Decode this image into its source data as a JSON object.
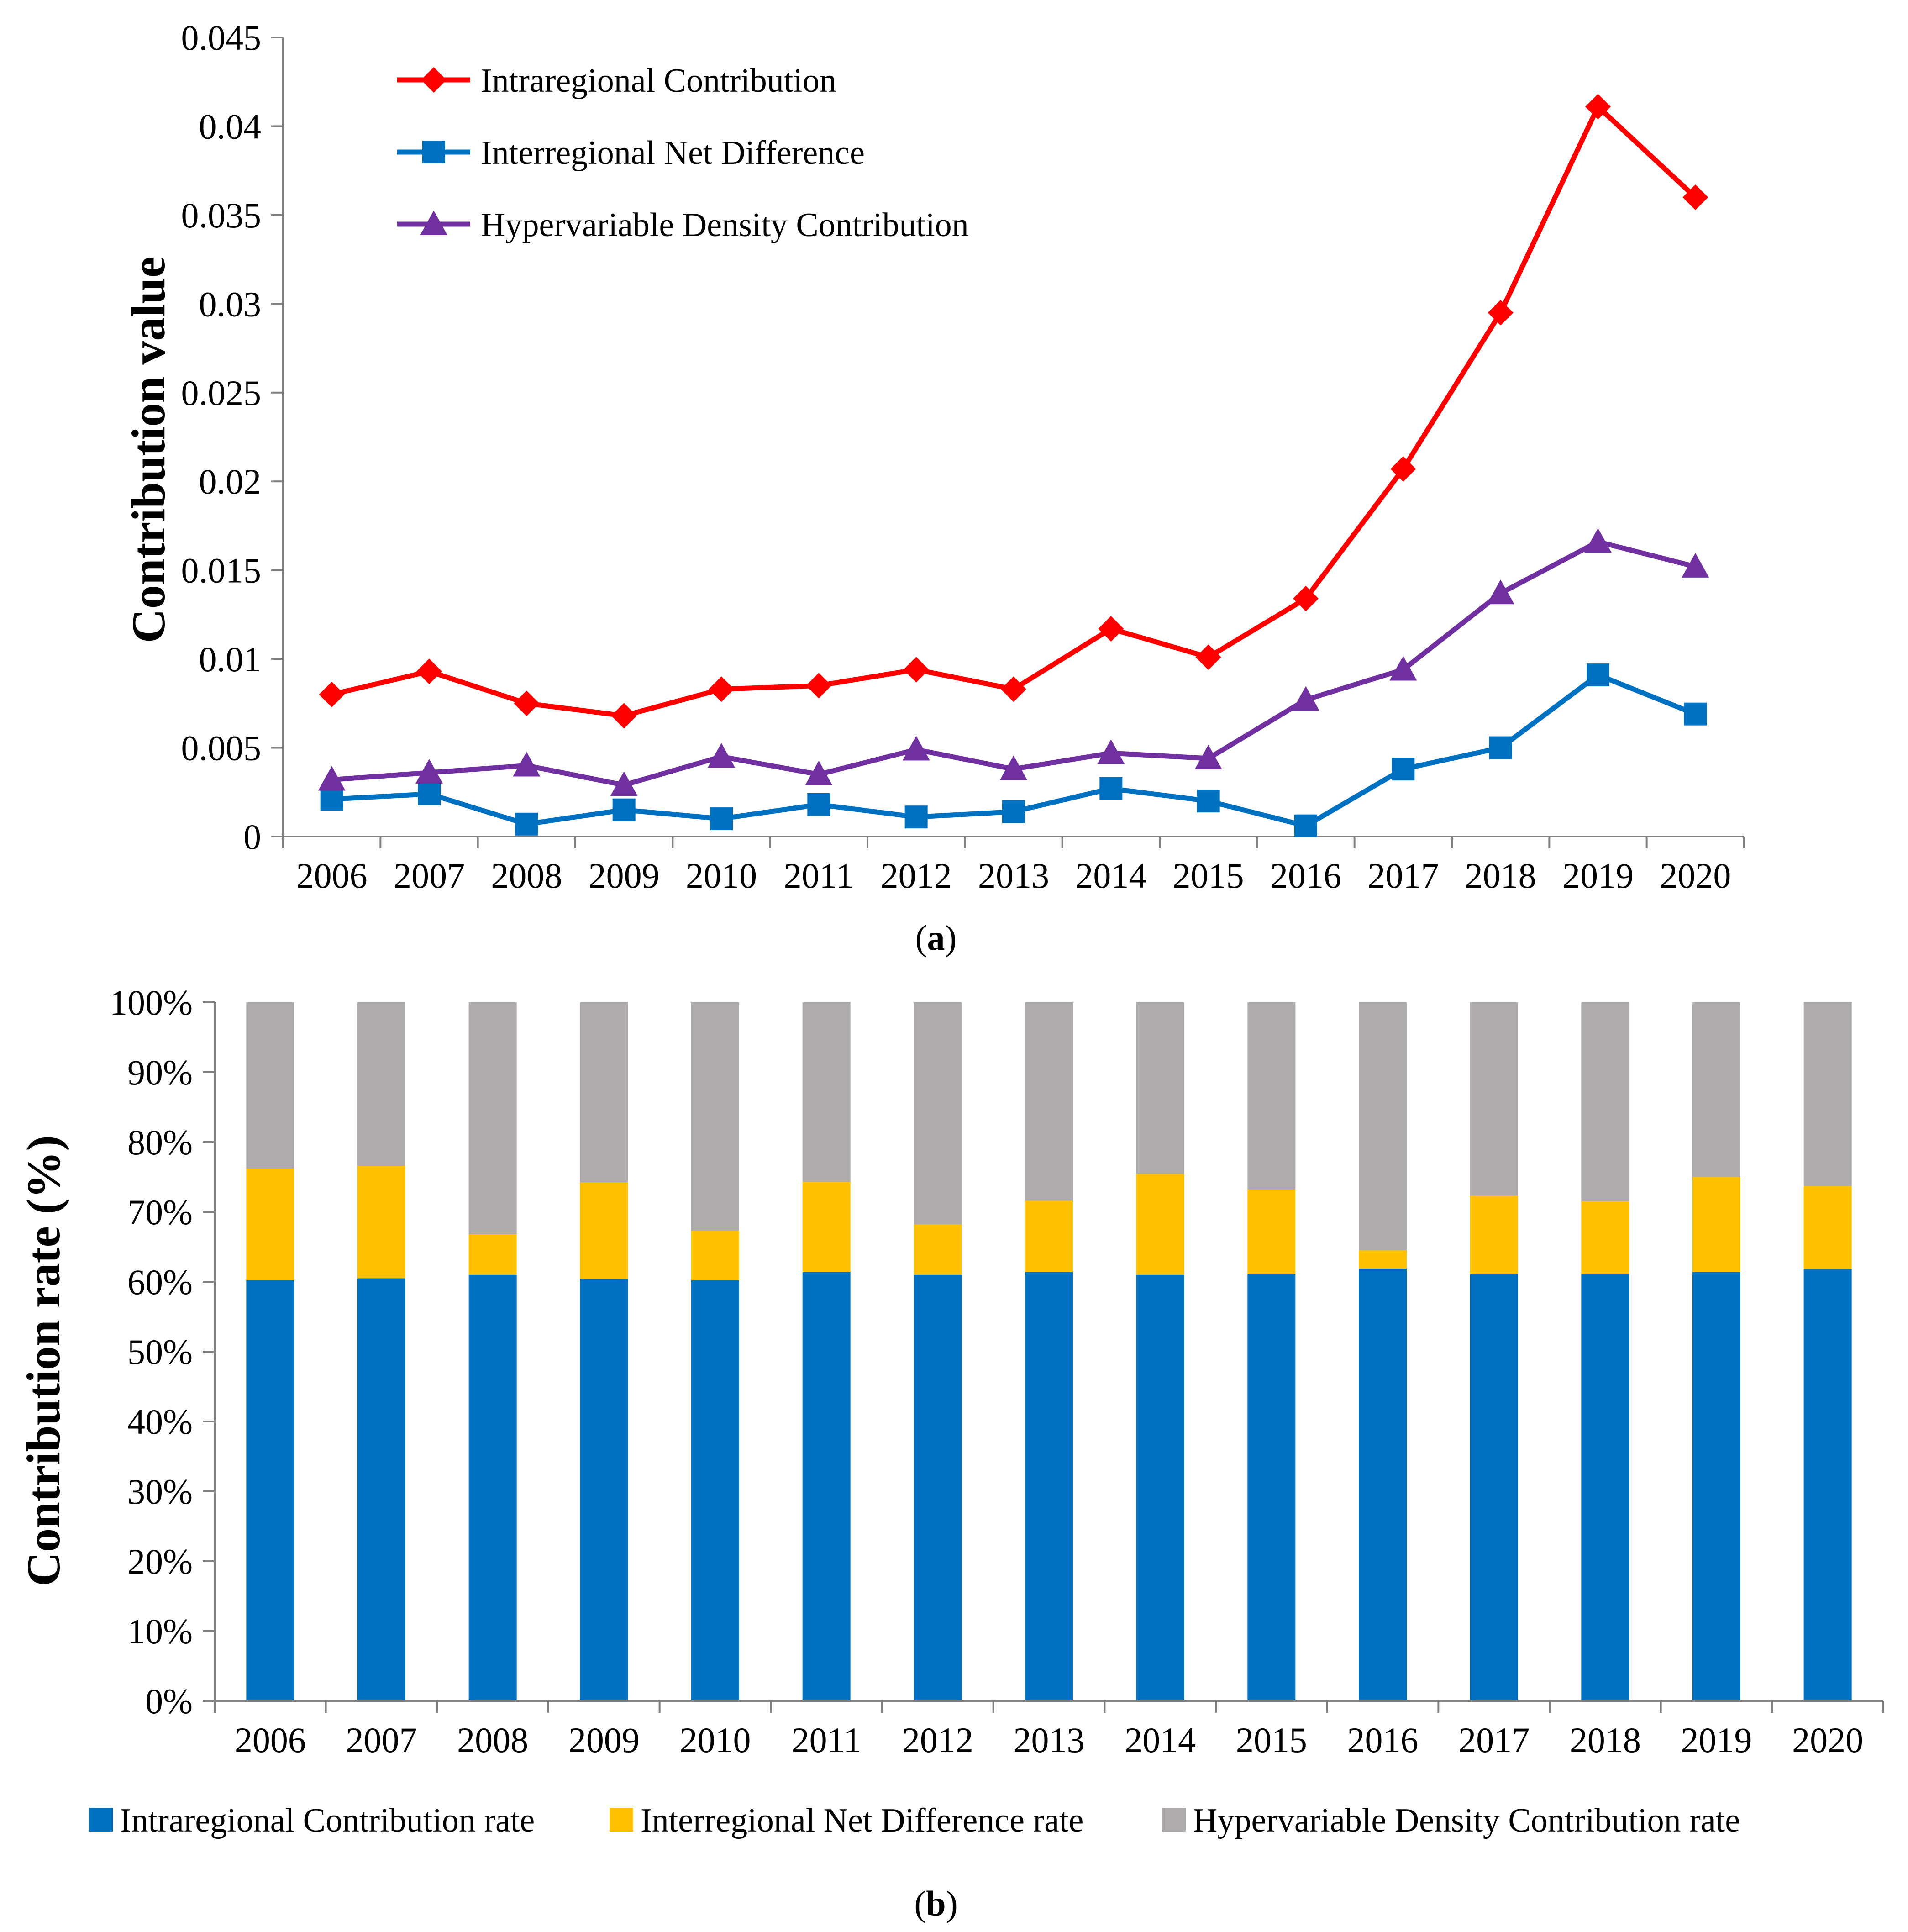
{
  "chart_data": [
    {
      "type": "line",
      "panel": "a",
      "caption_letter": "a",
      "title": "",
      "xlabel": "",
      "ylabel": "Contribution value",
      "ylim": [
        0,
        0.045
      ],
      "ytick_labels": [
        "0",
        "0.005",
        "0.01",
        "0.015",
        "0.02",
        "0.025",
        "0.03",
        "0.035",
        "0.04",
        "0.045"
      ],
      "categories": [
        "2006",
        "2007",
        "2008",
        "2009",
        "2010",
        "2011",
        "2012",
        "2013",
        "2014",
        "2015",
        "2016",
        "2017",
        "2018",
        "2019",
        "2020"
      ],
      "legend_position": "top-left",
      "series": [
        {
          "name": "Intraregional Contribution",
          "color": "#FF0000",
          "marker": "diamond",
          "values": [
            0.008,
            0.0093,
            0.0075,
            0.0068,
            0.0083,
            0.0085,
            0.0094,
            0.0083,
            0.0117,
            0.0101,
            0.0134,
            0.0207,
            0.0295,
            0.0411,
            0.036
          ]
        },
        {
          "name": "Interregional Net Difference",
          "color": "#0070C0",
          "marker": "square",
          "values": [
            0.0021,
            0.0024,
            0.0007,
            0.0015,
            0.001,
            0.0018,
            0.0011,
            0.0014,
            0.0027,
            0.002,
            0.0006,
            0.0038,
            0.005,
            0.0091,
            0.0069
          ]
        },
        {
          "name": "Hypervariable Density Contribution",
          "color": "#7030A0",
          "marker": "triangle",
          "values": [
            0.0032,
            0.0036,
            0.004,
            0.0029,
            0.0045,
            0.0035,
            0.0049,
            0.0038,
            0.0047,
            0.0044,
            0.0077,
            0.0094,
            0.0137,
            0.0166,
            0.0152
          ]
        }
      ]
    },
    {
      "type": "bar",
      "stacked": true,
      "panel": "b",
      "caption_letter": "b",
      "title": "",
      "xlabel": "",
      "ylabel": "Contribution rate (%)",
      "ylim": [
        0,
        100
      ],
      "ytick_labels": [
        "0%",
        "10%",
        "20%",
        "30%",
        "40%",
        "50%",
        "60%",
        "70%",
        "80%",
        "90%",
        "100%"
      ],
      "categories": [
        "2006",
        "2007",
        "2008",
        "2009",
        "2010",
        "2011",
        "2012",
        "2013",
        "2014",
        "2015",
        "2016",
        "2017",
        "2018",
        "2019",
        "2020"
      ],
      "legend_position": "bottom",
      "series": [
        {
          "name": "Intraregional Contribution rate",
          "color": "#0070C0",
          "values": [
            60.2,
            60.5,
            61.0,
            60.4,
            60.2,
            61.4,
            61.0,
            61.4,
            61.0,
            61.1,
            61.9,
            61.1,
            61.1,
            61.4,
            61.8
          ]
        },
        {
          "name": "Interregional Net Difference rate",
          "color": "#FFC000",
          "values": [
            16.0,
            16.1,
            5.8,
            13.8,
            7.1,
            12.9,
            7.2,
            10.2,
            14.4,
            12.1,
            2.6,
            11.2,
            10.4,
            13.6,
            11.9
          ]
        },
        {
          "name": "Hypervariable Density Contribution rate",
          "color": "#AFABAB",
          "values": [
            23.8,
            23.4,
            33.2,
            25.8,
            32.7,
            25.7,
            31.8,
            28.4,
            24.6,
            26.8,
            35.5,
            27.7,
            28.5,
            25.0,
            26.3
          ]
        }
      ]
    }
  ]
}
